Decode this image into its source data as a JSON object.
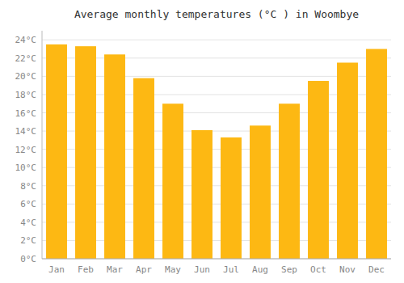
{
  "chart_data": {
    "type": "bar",
    "title": "Average monthly temperatures (°C ) in Woombye",
    "categories": [
      "Jan",
      "Feb",
      "Mar",
      "Apr",
      "May",
      "Jun",
      "Jul",
      "Aug",
      "Sep",
      "Oct",
      "Nov",
      "Dec"
    ],
    "values": [
      23.5,
      23.3,
      22.4,
      19.8,
      17.0,
      14.1,
      13.3,
      14.6,
      17.0,
      19.5,
      21.5,
      23.0
    ],
    "color": "#FDB813",
    "ylim": [
      0,
      25
    ],
    "yticks": [
      {
        "value": 0,
        "label": "0°C"
      },
      {
        "value": 2,
        "label": "2°C"
      },
      {
        "value": 4,
        "label": "4°C"
      },
      {
        "value": 6,
        "label": "6°C"
      },
      {
        "value": 8,
        "label": "8°C"
      },
      {
        "value": 10,
        "label": "10°C"
      },
      {
        "value": 12,
        "label": "12°C"
      },
      {
        "value": 14,
        "label": "14°C"
      },
      {
        "value": 16,
        "label": "16°C"
      },
      {
        "value": 18,
        "label": "18°C"
      },
      {
        "value": 20,
        "label": "20°C"
      },
      {
        "value": 22,
        "label": "22°C"
      },
      {
        "value": 24,
        "label": "24°C"
      }
    ],
    "grid": true
  }
}
